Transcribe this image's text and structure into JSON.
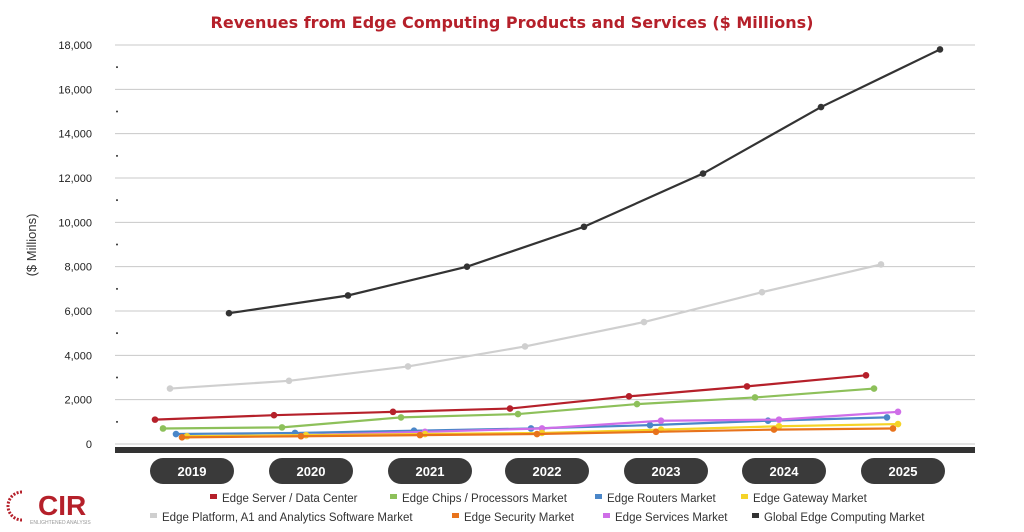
{
  "chart_data": {
    "type": "line",
    "title": "Revenues from Edge Computing Products and Services ($ Millions)",
    "xlabel": "",
    "ylabel": "($ Millions)",
    "categories": [
      "2019",
      "2020",
      "2021",
      "2022",
      "2023",
      "2024",
      "2025"
    ],
    "ylim": [
      0,
      18000
    ],
    "yticks": [
      0,
      2000,
      4000,
      6000,
      8000,
      10000,
      12000,
      14000,
      16000,
      18000
    ],
    "ytick_labels": [
      "0",
      "2,000",
      "4,000",
      "6,000",
      "8,000",
      "10,000",
      "12,000",
      "14,000",
      "16,000",
      "18,000"
    ],
    "grid": true,
    "legend_placement": "bottom",
    "series": [
      {
        "name": "Edge Server / Data Center",
        "color": "#b5202a",
        "values": [
          1100,
          1300,
          1450,
          1600,
          2150,
          2600,
          3100
        ]
      },
      {
        "name": "Edge Chips / Processors Market",
        "color": "#8dc05a",
        "values": [
          700,
          750,
          1200,
          1350,
          1800,
          2100,
          2500
        ]
      },
      {
        "name": "Edge Routers Market",
        "color": "#4a86c8",
        "values": [
          450,
          500,
          600,
          700,
          850,
          1050,
          1200
        ]
      },
      {
        "name": "Edge Gateway Market",
        "color": "#f5d327",
        "values": [
          350,
          400,
          450,
          500,
          650,
          800,
          900
        ]
      },
      {
        "name": "Edge Platform, A1 and Analytics Software Market",
        "color": "#cfcfcf",
        "values": [
          2500,
          2850,
          3500,
          4400,
          5500,
          6850,
          8100
        ]
      },
      {
        "name": "Edge Security Market",
        "color": "#e8731c",
        "values": [
          300,
          350,
          400,
          450,
          550,
          650,
          700
        ]
      },
      {
        "name": "Edge Services Market",
        "color": "#cf6ee8",
        "values": [
          350,
          400,
          550,
          700,
          1050,
          1100,
          1450
        ]
      },
      {
        "name": "Global Edge Computing Market",
        "color": "#333333",
        "values": [
          5900,
          6700,
          8000,
          9800,
          12200,
          15200,
          17800
        ]
      }
    ]
  },
  "logo": {
    "text": "CIR",
    "tagline": "ENLIGHTENED ANALYSIS"
  }
}
